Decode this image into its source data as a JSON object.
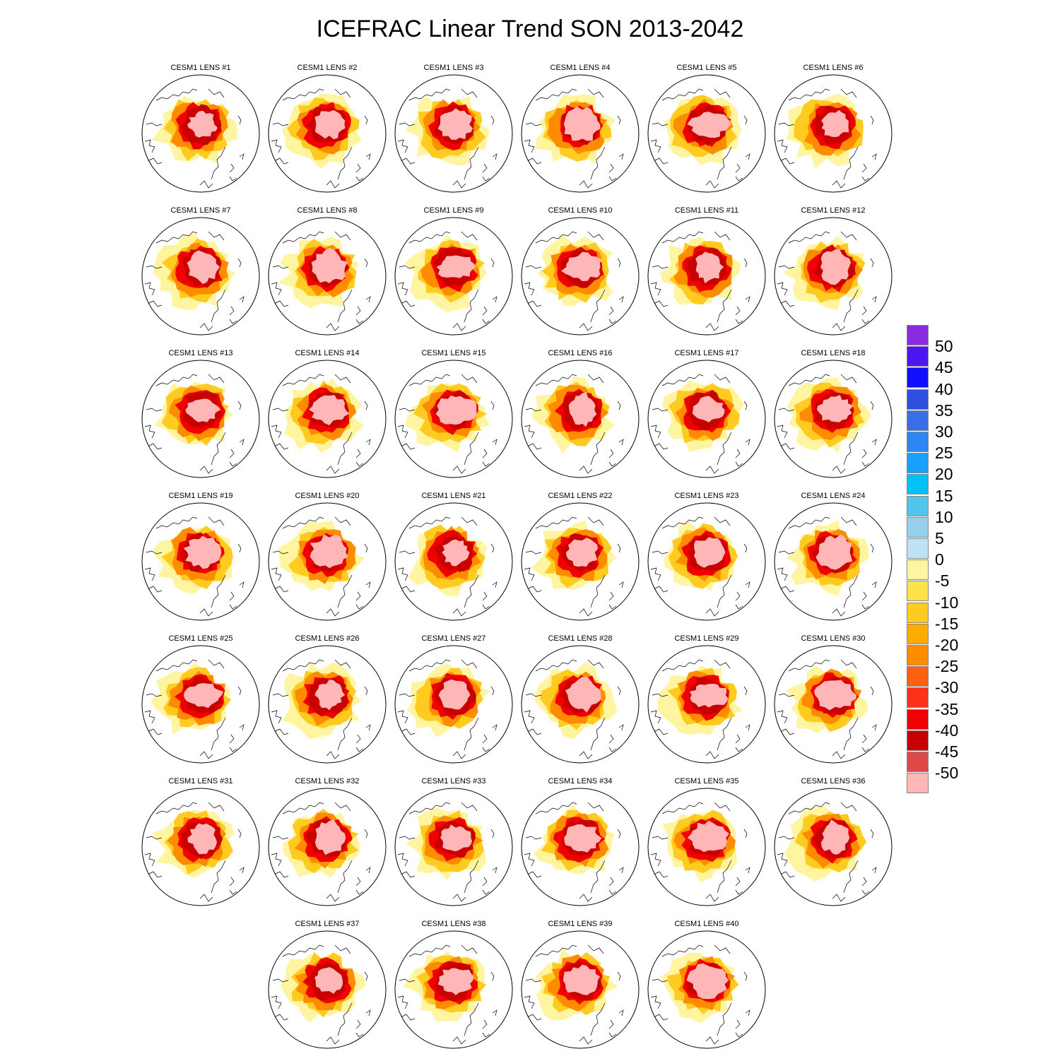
{
  "title": "ICEFRAC Linear Trend SON 2013-2042",
  "panels": [
    "CESM1 LENS #1",
    "CESM1 LENS #2",
    "CESM1 LENS #3",
    "CESM1 LENS #4",
    "CESM1 LENS #5",
    "CESM1 LENS #6",
    "CESM1 LENS #7",
    "CESM1 LENS #8",
    "CESM1 LENS #9",
    "CESM1 LENS #10",
    "CESM1 LENS #11",
    "CESM1 LENS #12",
    "CESM1 LENS #13",
    "CESM1 LENS #14",
    "CESM1 LENS #15",
    "CESM1 LENS #16",
    "CESM1 LENS #17",
    "CESM1 LENS #18",
    "CESM1 LENS #19",
    "CESM1 LENS #20",
    "CESM1 LENS #21",
    "CESM1 LENS #22",
    "CESM1 LENS #23",
    "CESM1 LENS #24",
    "CESM1 LENS #25",
    "CESM1 LENS #26",
    "CESM1 LENS #27",
    "CESM1 LENS #28",
    "CESM1 LENS #29",
    "CESM1 LENS #30",
    "CESM1 LENS #31",
    "CESM1 LENS #32",
    "CESM1 LENS #33",
    "CESM1 LENS #34",
    "CESM1 LENS #35",
    "CESM1 LENS #36",
    "CESM1 LENS #37",
    "CESM1 LENS #38",
    "CESM1 LENS #39",
    "CESM1 LENS #40"
  ],
  "colorbar": {
    "labels": [
      "50",
      "45",
      "40",
      "35",
      "30",
      "25",
      "20",
      "15",
      "10",
      "5",
      "0",
      "-5",
      "-10",
      "-15",
      "-20",
      "-25",
      "-30",
      "-35",
      "-40",
      "-45",
      "-50"
    ],
    "colors": [
      "#8a2be2",
      "#4b16f0",
      "#1010ff",
      "#2f4fe0",
      "#3a6ee8",
      "#2d86f5",
      "#1aa0ff",
      "#00c2f5",
      "#52c4ee",
      "#98cfec",
      "#bfe3f5",
      "#fff5a0",
      "#ffe34a",
      "#ffcb20",
      "#ffac00",
      "#ff8c00",
      "#ff6010",
      "#ff3018",
      "#f00000",
      "#c80000",
      "#e04848",
      "#ffb6b6"
    ]
  }
}
